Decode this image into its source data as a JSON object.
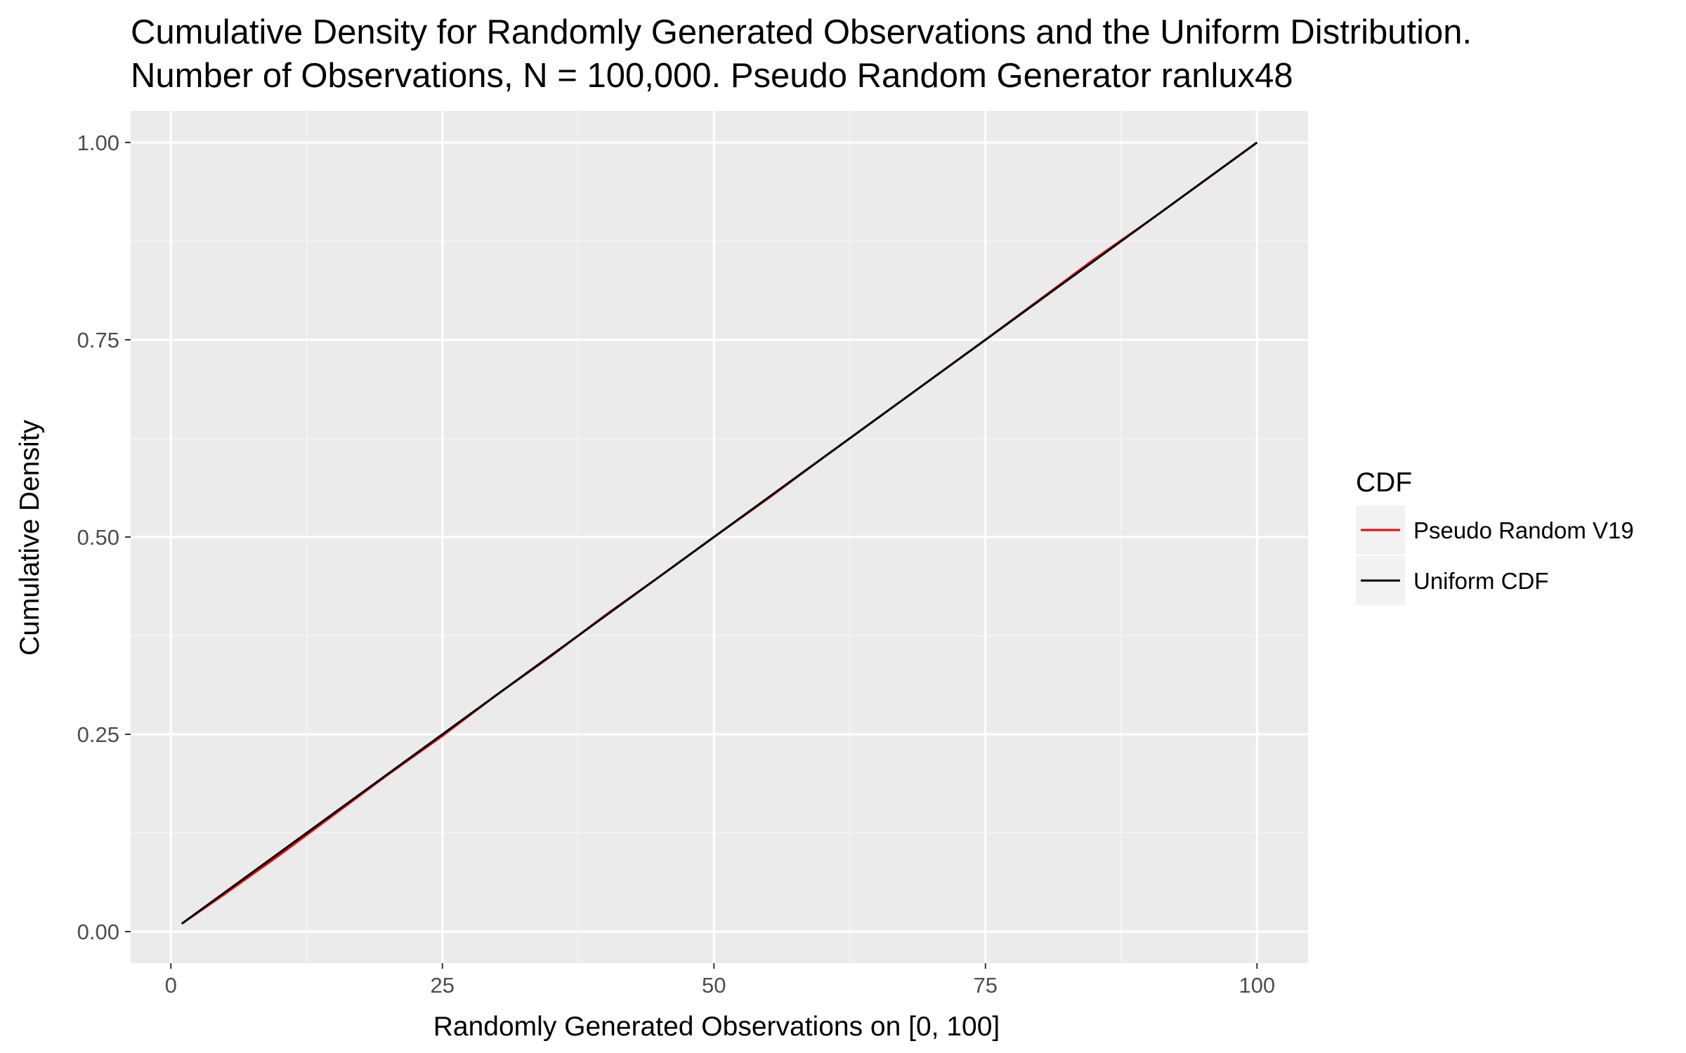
{
  "chart_data": {
    "type": "line",
    "title": "Cumulative Density for Randomly Generated Observations and the Uniform Distribution.",
    "subtitle": "Number of Observations, N = 100,000. Pseudo Random Generator ranlux48",
    "xlabel": "Randomly Generated Observations on [0, 100]",
    "ylabel": "Cumulative Density",
    "xlim": [
      -3.7,
      104.7
    ],
    "ylim": [
      -0.04,
      1.04
    ],
    "x_ticks": [
      0,
      25,
      50,
      75,
      100
    ],
    "x_tick_labels": [
      "0",
      "25",
      "50",
      "75",
      "100"
    ],
    "y_ticks": [
      0.0,
      0.25,
      0.5,
      0.75,
      1.0
    ],
    "y_tick_labels": [
      "0.00",
      "0.25",
      "0.50",
      "0.75",
      "1.00"
    ],
    "grid": true,
    "background": "#ebebeb",
    "legend": {
      "title": "CDF",
      "position": "right"
    },
    "series": [
      {
        "name": "Pseudo Random V19",
        "color": "#ff0000",
        "x": [
          1,
          5,
          10,
          15,
          20,
          25,
          30,
          35,
          40,
          45,
          50,
          55,
          60,
          65,
          70,
          75,
          80,
          85,
          90,
          95,
          100
        ],
        "y": [
          0.01,
          0.048,
          0.097,
          0.148,
          0.199,
          0.248,
          0.3,
          0.349,
          0.401,
          0.45,
          0.5,
          0.549,
          0.6,
          0.65,
          0.7,
          0.75,
          0.801,
          0.852,
          0.9,
          0.95,
          1.0
        ]
      },
      {
        "name": "Uniform CDF",
        "color": "#000000",
        "x": [
          1,
          100
        ],
        "y": [
          0.01,
          1.0
        ]
      }
    ]
  }
}
